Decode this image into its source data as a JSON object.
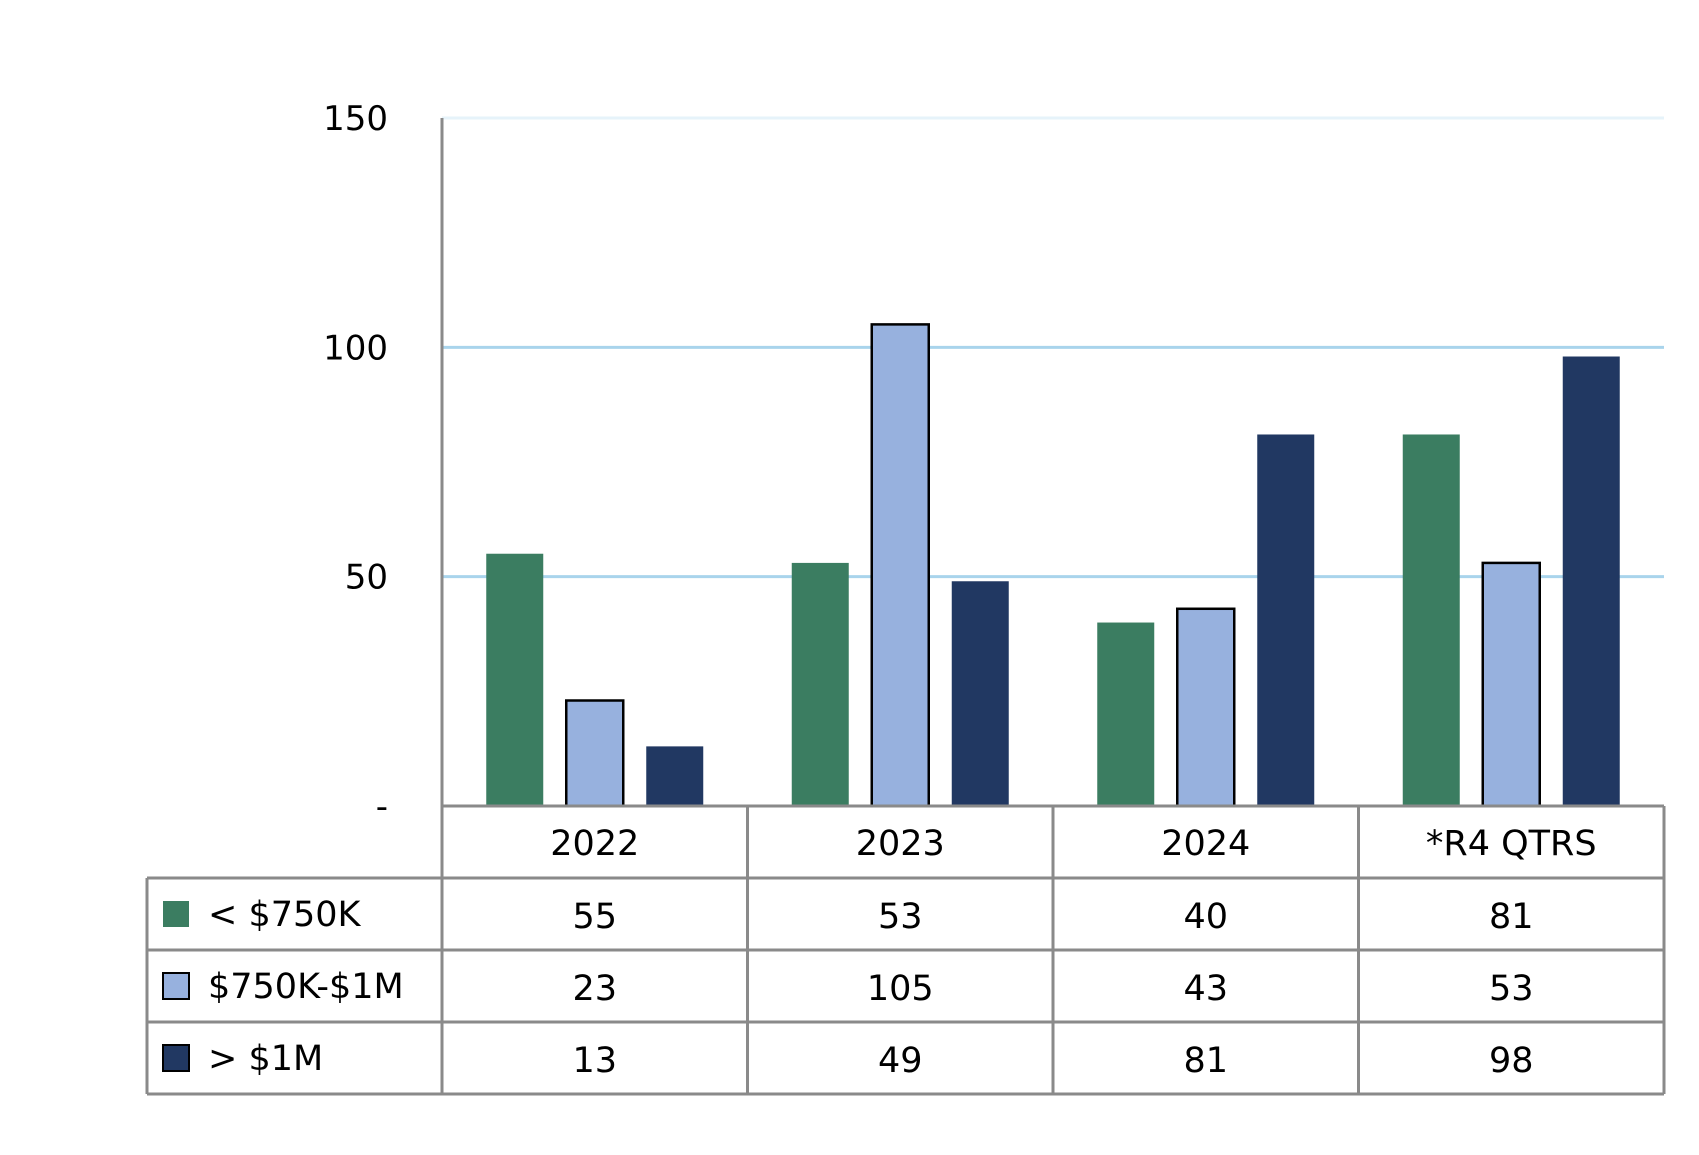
{
  "chart_data": {
    "type": "bar",
    "categories": [
      "2022",
      "2023",
      "2024",
      "*R4 QTRS"
    ],
    "series": [
      {
        "name": "< $750K",
        "values": [
          55,
          53,
          40,
          81
        ]
      },
      {
        "name": "$750K-$1M",
        "values": [
          23,
          105,
          43,
          53
        ]
      },
      {
        "name": "> $1M",
        "values": [
          13,
          49,
          81,
          98
        ]
      }
    ],
    "y_ticks": [
      "-",
      "50",
      "100",
      "150"
    ],
    "ylim": [
      0,
      150
    ],
    "grid": true,
    "data_table": true,
    "colors": {
      "series": [
        "#3b7d61",
        "#97b1de",
        "#213862"
      ],
      "gridline": "#a9d4ec",
      "table_border": "#8a8a8a"
    }
  }
}
